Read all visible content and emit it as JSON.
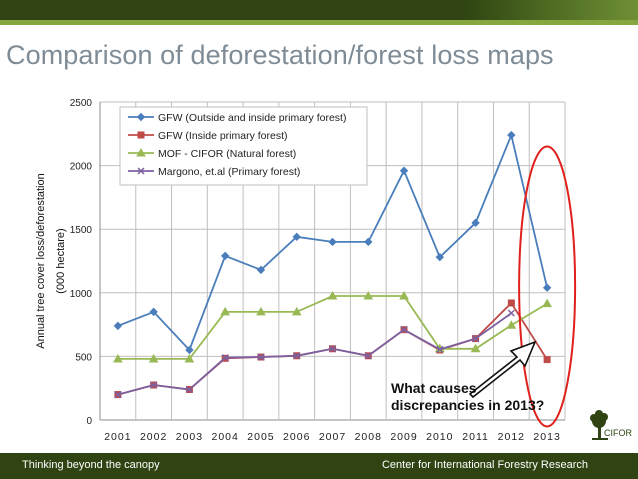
{
  "slide": {
    "title": "Comparison of deforestation/forest loss maps",
    "footer_left": "Thinking beyond the canopy",
    "footer_right": "Center for International Forestry Research",
    "logo_text": "CIFOR",
    "callout_line1": "What causes",
    "callout_line2": "discrepancies in 2013?"
  },
  "chart_data": {
    "type": "line",
    "title": "",
    "xlabel": "",
    "ylabel_line1": "Annual tree cover loss/deforestation",
    "ylabel_line2": "(000 hectare)",
    "categories": [
      "2001",
      "2002",
      "2003",
      "2004",
      "2005",
      "2006",
      "2007",
      "2008",
      "2009",
      "2010",
      "2011",
      "2012",
      "2013"
    ],
    "ylim": [
      0,
      2500
    ],
    "yticks": [
      0,
      500,
      1000,
      1500,
      2000,
      2500
    ],
    "grid": true,
    "legend_position": "top-left",
    "series": [
      {
        "name": "GFW (Outside and inside primary forest)",
        "color": "#4a7ebb",
        "marker": "diamond",
        "values": [
          740,
          850,
          550,
          1290,
          1180,
          1440,
          1400,
          1400,
          1960,
          1280,
          1550,
          2240,
          1040
        ]
      },
      {
        "name": "GFW (Inside primary forest)",
        "color": "#be4b48",
        "marker": "square",
        "values": [
          200,
          275,
          240,
          485,
          495,
          505,
          560,
          505,
          710,
          550,
          640,
          920,
          475
        ]
      },
      {
        "name": "MOF - CIFOR (Natural forest)",
        "color": "#98b954",
        "marker": "triangle",
        "values": [
          480,
          480,
          480,
          850,
          850,
          850,
          975,
          975,
          975,
          560,
          560,
          745,
          915
        ]
      },
      {
        "name": "Margono, et.al (Primary forest)",
        "color": "#7d60a0",
        "marker": "x",
        "values": [
          200,
          275,
          240,
          490,
          495,
          505,
          560,
          505,
          710,
          555,
          640,
          840,
          null
        ]
      }
    ]
  }
}
